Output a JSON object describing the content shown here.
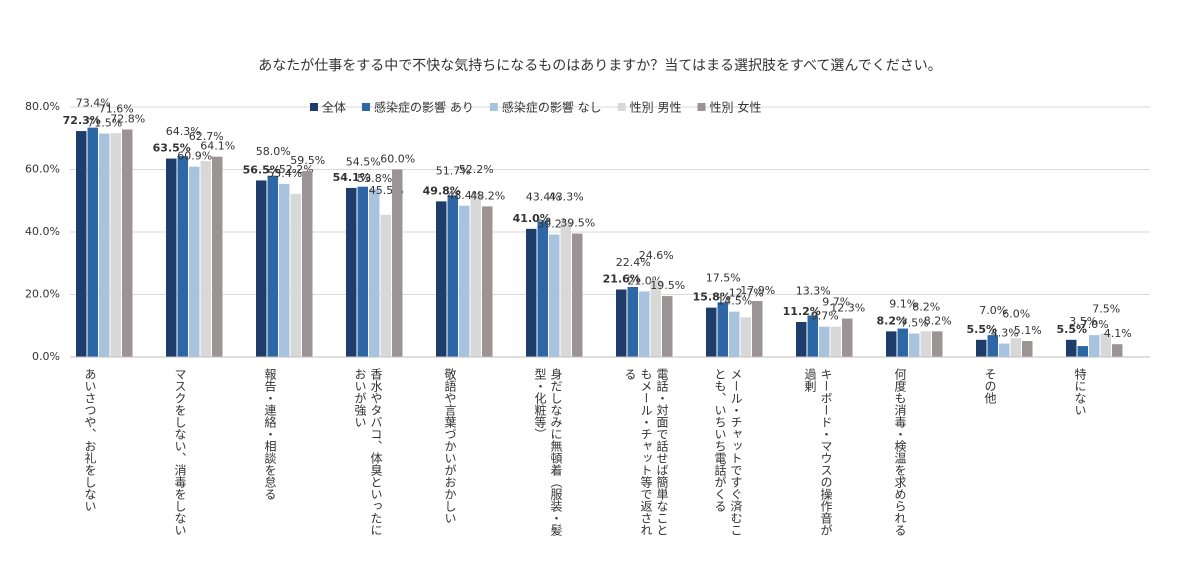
{
  "chart_data": {
    "type": "bar",
    "title": "あなたが仕事をする中で不快な気持ちになるものはありますか？当てはまる選択肢をすべて選んでください。",
    "categories": [
      "あいさつや、お礼をしない",
      "マスクをしない、消毒をしない",
      "報告・連絡・相談を怠る",
      "香水やタバコ、体臭といったにおいが強い",
      "敬語や言葉づかいがおかしい",
      "身だしなみに無頓着（服装・髪型・化粧等）",
      "電話・対面で話せば簡単なこともメール・チャット等で返される",
      "メール・チャットですぐ済むことも、いちいち電話がくる",
      "キーボード・マウスの操作音が過剰",
      "何度も消毒・検温を求められる",
      "その他",
      "特にない"
    ],
    "series": [
      {
        "name": "全体",
        "color": "#1f3d6b",
        "values": [
          72.3,
          63.5,
          56.5,
          54.1,
          49.8,
          41.0,
          21.6,
          15.8,
          11.2,
          8.2,
          5.5,
          5.5
        ],
        "value_labels": [
          "72.3%",
          "63.5%",
          "56.5%",
          "54.1%",
          "49.8%",
          "41.0%",
          "21.6%",
          "15.8%",
          "11.2%",
          "8.2%",
          "5.5%",
          "5.5%"
        ]
      },
      {
        "name": "感染症の影響 あり",
        "color": "#2e67a6",
        "values": [
          73.4,
          64.3,
          58.0,
          54.5,
          51.7,
          43.4,
          22.4,
          17.5,
          13.3,
          9.1,
          7.0,
          3.5
        ],
        "value_labels": [
          "73.4%",
          "64.3%",
          "58.0%",
          "54.5%",
          "51.7%",
          "43.4%",
          "22.4%",
          "17.5%",
          "13.3%",
          "9.1%",
          "7.0%",
          "3.5%"
        ]
      },
      {
        "name": "感染症の影響 なし",
        "color": "#a8c3e0",
        "values": [
          71.5,
          60.9,
          55.4,
          53.8,
          48.4,
          39.2,
          21.0,
          14.5,
          9.7,
          7.5,
          4.3,
          7.0
        ],
        "value_labels": [
          "71.5%",
          "60.9%",
          "55.4%",
          "53.8%",
          "48.4%",
          "39.2%",
          "21.0%",
          "14.5%",
          "9.7%",
          "7.5%",
          "4.3%",
          "7.0%"
        ]
      },
      {
        "name": "性別 男性",
        "color": "#d8d8d8",
        "values": [
          71.6,
          62.7,
          52.2,
          45.5,
          52.2,
          43.3,
          24.6,
          12.7,
          9.7,
          8.2,
          6.0,
          7.5
        ],
        "value_labels": [
          "71.6%",
          "62.7%",
          "52.2%",
          "45.5%",
          "52.2%",
          "43.3%",
          "24.6%",
          "12.7%",
          "9.7%",
          "8.2%",
          "6.0%",
          "7.5%"
        ]
      },
      {
        "name": "性別 女性",
        "color": "#9c9494",
        "values": [
          72.8,
          64.1,
          59.5,
          60.0,
          48.2,
          39.5,
          19.5,
          17.9,
          12.3,
          8.2,
          5.1,
          4.1
        ],
        "value_labels": [
          "72.8%",
          "64.1%",
          "59.5%",
          "60.0%",
          "48.2%",
          "39.5%",
          "19.5%",
          "17.9%",
          "12.3%",
          "8.2%",
          "5.1%",
          "4.1%"
        ]
      }
    ],
    "ylim": [
      0,
      80
    ],
    "yticks": [
      {
        "value": 0,
        "label": "0.0%"
      },
      {
        "value": 20,
        "label": "20.0%"
      },
      {
        "value": 40,
        "label": "40.0%"
      },
      {
        "value": 60,
        "label": "60.0%"
      },
      {
        "value": 80,
        "label": "80.0%"
      }
    ],
    "grid": true
  }
}
